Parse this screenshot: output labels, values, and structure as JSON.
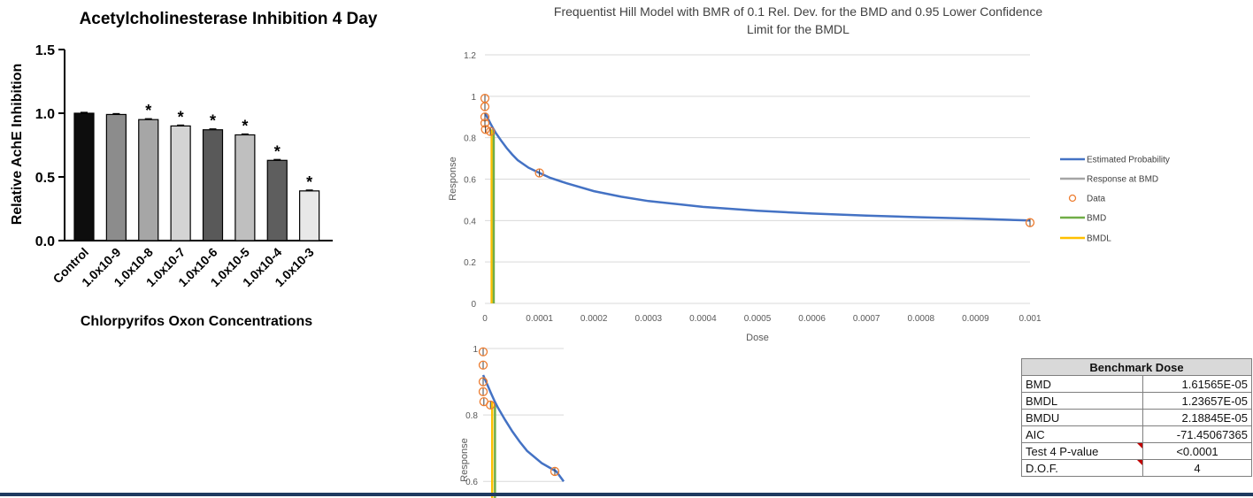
{
  "chart_data": [
    {
      "type": "bar",
      "title": "Acetylcholinesterase Inhibition 4 Day",
      "xlabel": "Chlorpyrifos Oxon Concentrations",
      "ylabel": "Relative AchE Inhibition",
      "categories": [
        "Control",
        "1.0x10-9",
        "1.0x10-8",
        "1.0x10-7",
        "1.0x10-6",
        "1.0x10-5",
        "1.0x10-4",
        "1.0x10-3"
      ],
      "values": [
        1.0,
        0.99,
        0.95,
        0.9,
        0.87,
        0.83,
        0.63,
        0.39
      ],
      "significant": [
        false,
        false,
        true,
        true,
        true,
        true,
        true,
        true
      ],
      "significance_marker": "*",
      "bar_colors": [
        "#0d0d0d",
        "#8c8c8c",
        "#a6a6a6",
        "#d4d4d4",
        "#595959",
        "#bfbfbf",
        "#5e5e5e",
        "#e8e8e8"
      ],
      "ylim": [
        0,
        1.5
      ],
      "yticks": [
        "0.0",
        "0.5",
        "1.0",
        "1.5"
      ]
    },
    {
      "type": "line",
      "title": "Frequentist Hill Model with BMR of 0.1 Rel. Dev. for the BMD and 0.95 Lower Confidence Limit for the BMDL",
      "xlabel": "Dose",
      "ylabel": "Response",
      "xlim": [
        0,
        0.001
      ],
      "ylim": [
        0,
        1.2
      ],
      "xticks": [
        "0",
        "0.0001",
        "0.0002",
        "0.0003",
        "0.0004",
        "0.0005",
        "0.0006",
        "0.0007",
        "0.0008",
        "0.0009",
        "0.001"
      ],
      "yticks": [
        "0",
        "0.2",
        "0.4",
        "0.6",
        "0.8",
        "1",
        "1.2"
      ],
      "grid": true,
      "legend_placement": "right",
      "series": [
        {
          "name": "Estimated Probability",
          "color": "#4472c4",
          "kind": "curve",
          "x": [
            0,
            5e-06,
            1e-05,
            1.6e-05,
            2e-05,
            3e-05,
            4e-05,
            5e-05,
            6e-05,
            8e-05,
            0.0001,
            0.00012,
            0.00015,
            0.0002,
            0.00025,
            0.0003,
            0.0004,
            0.0005,
            0.0006,
            0.0007,
            0.0008,
            0.0009,
            0.001
          ],
          "y": [
            0.92,
            0.895,
            0.869,
            0.84,
            0.823,
            0.785,
            0.75,
            0.719,
            0.692,
            0.655,
            0.63,
            0.606,
            0.58,
            0.542,
            0.515,
            0.494,
            0.466,
            0.447,
            0.434,
            0.424,
            0.416,
            0.409,
            0.4
          ]
        },
        {
          "name": "Response at BMD",
          "color": "#a5a5a5",
          "kind": "line"
        },
        {
          "name": "Data",
          "color": "#ed7d31",
          "kind": "markers",
          "x": [
            0,
            0,
            0,
            0,
            1e-06,
            1e-05,
            0.0001,
            0.001
          ],
          "y": [
            0.99,
            0.95,
            0.9,
            0.87,
            0.84,
            0.83,
            0.63,
            0.39
          ]
        },
        {
          "name": "BMD",
          "color": "#70ad47",
          "kind": "vline",
          "x": 1.61565e-05
        },
        {
          "name": "BMDL",
          "color": "#ffc000",
          "kind": "vline",
          "x": 1.23657e-05
        }
      ]
    },
    {
      "type": "line",
      "ylabel": "Response",
      "xlim": [
        0,
        0.00011
      ],
      "ylim": [
        0.55,
        1.0
      ],
      "yticks": [
        "0.6",
        "0.8",
        "1"
      ],
      "grid": true
    }
  ],
  "benchmark_table": {
    "header": "Benchmark Dose",
    "rows": [
      {
        "label": "BMD",
        "value": "1.61565E-05",
        "flag": false
      },
      {
        "label": "BMDL",
        "value": "1.23657E-05",
        "flag": false
      },
      {
        "label": "BMDU",
        "value": "2.18845E-05",
        "flag": false
      },
      {
        "label": "AIC",
        "value": "-71.45067365",
        "flag": false
      },
      {
        "label": "Test 4 P-value",
        "value": "<0.0001",
        "flag": true
      },
      {
        "label": "D.O.F.",
        "value": "4",
        "flag": true
      }
    ]
  }
}
